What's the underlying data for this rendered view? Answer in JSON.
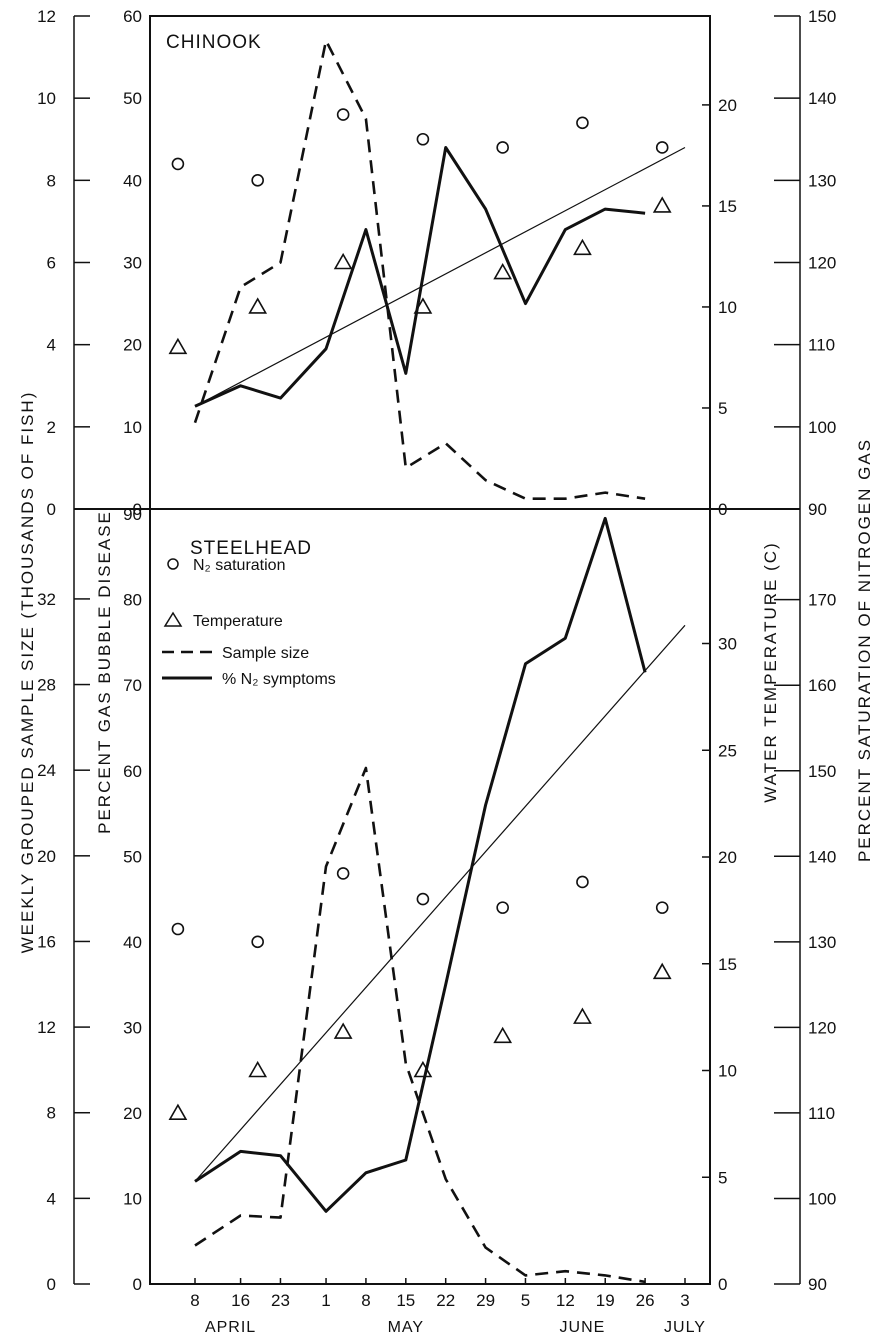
{
  "chart_data": [
    {
      "type": "line",
      "title": "CHINOOK",
      "x_tick_labels": [
        "8",
        "16",
        "23",
        "1",
        "8",
        "15",
        "22",
        "29",
        "5",
        "12",
        "19",
        "26",
        "3"
      ],
      "x_tick_dates": [
        "Apr 8",
        "Apr 16",
        "Apr 23",
        "May 1",
        "May 8",
        "May 15",
        "May 22",
        "May 29",
        "Jun 5",
        "Jun 12",
        "Jun 19",
        "Jun 26",
        "Jul 3"
      ],
      "months": [
        "APRIL",
        "MAY",
        "JUNE",
        "JULY"
      ],
      "axes": {
        "sample_size": {
          "label": "WEEKLY GROUPED SAMPLE SIZE (THOUSANDS OF FISH)",
          "ticks": [
            0,
            2,
            4,
            6,
            8,
            10,
            12
          ],
          "range": [
            0,
            12
          ]
        },
        "percent": {
          "label": "PERCENT GAS BUBBLE DISEASE",
          "ticks": [
            0,
            10,
            20,
            30,
            40,
            50,
            60
          ],
          "range": [
            0,
            60
          ]
        },
        "temperature": {
          "label": "WATER TEMPERATURE (C)",
          "ticks": [
            0,
            5,
            10,
            15,
            20
          ],
          "range": [
            0,
            24.4
          ]
        },
        "saturation": {
          "label": "PERCENT SATURATION OF NITROGEN GAS",
          "ticks": [
            90,
            100,
            110,
            120,
            130,
            140,
            150
          ],
          "range": [
            90,
            150
          ]
        }
      },
      "series": [
        {
          "name": "Sample size",
          "style": "dashed",
          "axis": "sample_size",
          "x": [
            "Apr 8",
            "Apr 16",
            "Apr 23",
            "May 1",
            "May 8",
            "May 15",
            "May 22",
            "May 29",
            "Jun 5",
            "Jun 12",
            "Jun 19",
            "Jun 26"
          ],
          "y": [
            2.1,
            5.4,
            6.0,
            11.4,
            9.5,
            1.0,
            1.6,
            0.7,
            0.25,
            0.25,
            0.4,
            0.25
          ]
        },
        {
          "name": "% N2 symptoms",
          "style": "solid",
          "axis": "percent",
          "x": [
            "Apr 8",
            "Apr 16",
            "Apr 23",
            "May 1",
            "May 8",
            "May 15",
            "May 22",
            "May 29",
            "Jun 5",
            "Jun 12",
            "Jun 19",
            "Jun 26"
          ],
          "y": [
            12.5,
            15,
            13.5,
            19.5,
            34,
            16.5,
            44,
            36.5,
            25,
            34,
            36.5,
            36
          ]
        },
        {
          "name": "N2 saturation",
          "marker": "circle",
          "axis": "saturation",
          "x": [
            "Apr 5",
            "Apr 19",
            "May 4",
            "May 18",
            "Jun 1",
            "Jun 15",
            "Jun 29"
          ],
          "y": [
            132,
            130,
            138,
            135,
            134,
            137,
            134
          ]
        },
        {
          "name": "Temperature",
          "marker": "triangle",
          "axis": "temperature",
          "x": [
            "Apr 5",
            "Apr 19",
            "May 4",
            "May 18",
            "Jun 1",
            "Jun 15",
            "Jun 29"
          ],
          "y": [
            8,
            10,
            12.2,
            10,
            11.7,
            12.9,
            15
          ]
        },
        {
          "name": "Trend",
          "style": "thin",
          "axis": "percent",
          "x": [
            "Apr 8",
            "Jul 3"
          ],
          "y": [
            12.5,
            44
          ]
        }
      ]
    },
    {
      "type": "line",
      "title": "STEELHEAD",
      "x_tick_labels": [
        "8",
        "16",
        "23",
        "1",
        "8",
        "15",
        "22",
        "29",
        "5",
        "12",
        "19",
        "26",
        "3"
      ],
      "x_tick_dates": [
        "Apr 8",
        "Apr 16",
        "Apr 23",
        "May 1",
        "May 8",
        "May 15",
        "May 22",
        "May 29",
        "Jun 5",
        "Jun 12",
        "Jun 19",
        "Jun 26",
        "Jul 3"
      ],
      "months": [
        "APRIL",
        "MAY",
        "JUNE",
        "JULY"
      ],
      "axes": {
        "sample_size": {
          "label": "WEEKLY GROUPED SAMPLE SIZE (THOUSANDS OF FISH)",
          "ticks": [
            0,
            4,
            8,
            12,
            16,
            20,
            24,
            28,
            32
          ],
          "range": [
            0,
            36.2
          ]
        },
        "percent": {
          "label": "PERCENT GAS BUBBLE DISEASE",
          "ticks": [
            0,
            10,
            20,
            30,
            40,
            50,
            60,
            70,
            80,
            90
          ],
          "range": [
            0,
            90.6
          ]
        },
        "temperature": {
          "label": "WATER TEMPERATURE (C)",
          "ticks": [
            0,
            5,
            10,
            15,
            20,
            25,
            30
          ],
          "range": [
            0,
            36.3
          ]
        },
        "saturation": {
          "label": "PERCENT SATURATION OF NITROGEN GAS",
          "ticks": [
            90,
            100,
            110,
            120,
            130,
            140,
            150,
            160,
            170
          ],
          "range": [
            90,
            180.6
          ]
        }
      },
      "series": [
        {
          "name": "Sample size",
          "style": "dashed",
          "axis": "sample_size",
          "x": [
            "Apr 8",
            "Apr 16",
            "Apr 23",
            "May 1",
            "May 8",
            "May 15",
            "May 22",
            "May 29",
            "Jun 5",
            "Jun 12",
            "Jun 19",
            "Jun 26"
          ],
          "y": [
            1.8,
            3.2,
            3.1,
            19.5,
            24.1,
            10.3,
            4.9,
            1.7,
            0.4,
            0.6,
            0.4,
            0.1
          ]
        },
        {
          "name": "% N2 symptoms",
          "style": "solid",
          "axis": "percent",
          "x": [
            "Apr 8",
            "Apr 16",
            "Apr 23",
            "May 1",
            "May 8",
            "May 15",
            "May 22",
            "May 29",
            "Jun 5",
            "Jun 12",
            "Jun 19",
            "Jun 26"
          ],
          "y": [
            12,
            15.5,
            15,
            8.5,
            13,
            14.5,
            35,
            56,
            72.5,
            75.5,
            89.5,
            71.5
          ]
        },
        {
          "name": "N2 saturation",
          "marker": "circle",
          "axis": "saturation",
          "x": [
            "Apr 5",
            "Apr 19",
            "May 4",
            "May 18",
            "Jun 1",
            "Jun 15",
            "Jun 29"
          ],
          "y": [
            131.5,
            130,
            138,
            135,
            134,
            137,
            134
          ]
        },
        {
          "name": "Temperature",
          "marker": "triangle",
          "axis": "temperature",
          "x": [
            "Apr 5",
            "Apr 19",
            "May 4",
            "May 18",
            "Jun 1",
            "Jun 15",
            "Jun 29"
          ],
          "y": [
            8,
            10,
            11.8,
            10,
            11.6,
            12.5,
            14.6
          ]
        },
        {
          "name": "Trend",
          "style": "thin",
          "axis": "percent",
          "x": [
            "Apr 8",
            "Jul 3"
          ],
          "y": [
            12,
            77
          ]
        }
      ],
      "legend": [
        {
          "label": "N₂ saturation",
          "marker": "circle"
        },
        {
          "label": "Temperature",
          "marker": "triangle"
        },
        {
          "label": "Sample size",
          "marker": "dashed-line"
        },
        {
          "label": "% N₂ symptoms",
          "marker": "solid-line"
        }
      ]
    }
  ]
}
